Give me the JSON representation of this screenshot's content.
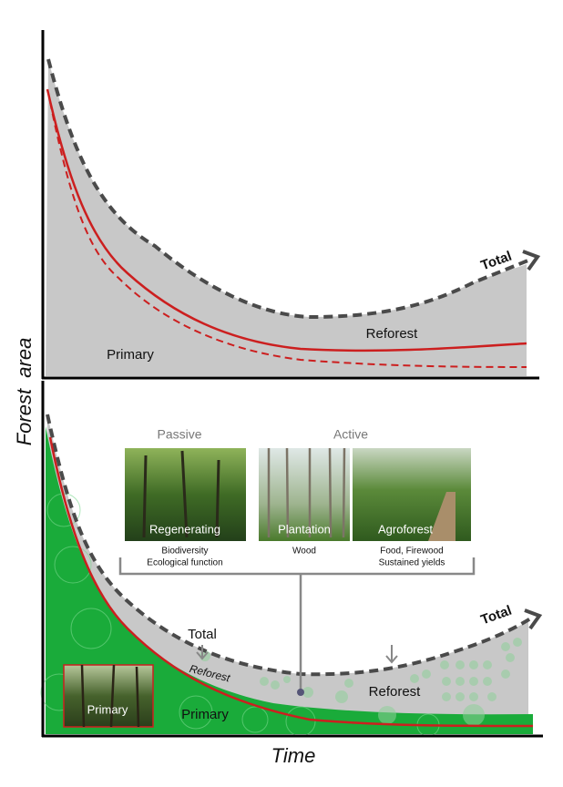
{
  "axes": {
    "y_label": "Forest  area",
    "x_label": "Time"
  },
  "top_panel": {
    "total": "Total",
    "reforest": "Reforest",
    "primary": "Primary"
  },
  "bottom_panel": {
    "passive": "Passive",
    "active": "Active",
    "photos": [
      {
        "label": "Regenerating",
        "caption": [
          "Biodiversity",
          "Ecological function"
        ]
      },
      {
        "label": "Plantation",
        "caption": [
          "Wood"
        ]
      },
      {
        "label": "Agroforest",
        "caption": [
          "Food, Firewood",
          "Sustained yields"
        ]
      }
    ],
    "total_label": "Total",
    "reforest_band": "Reforest",
    "reforest": "Reforest",
    "total_curve": "Total",
    "primary_photo": "Primary",
    "primary": "Primary"
  }
}
